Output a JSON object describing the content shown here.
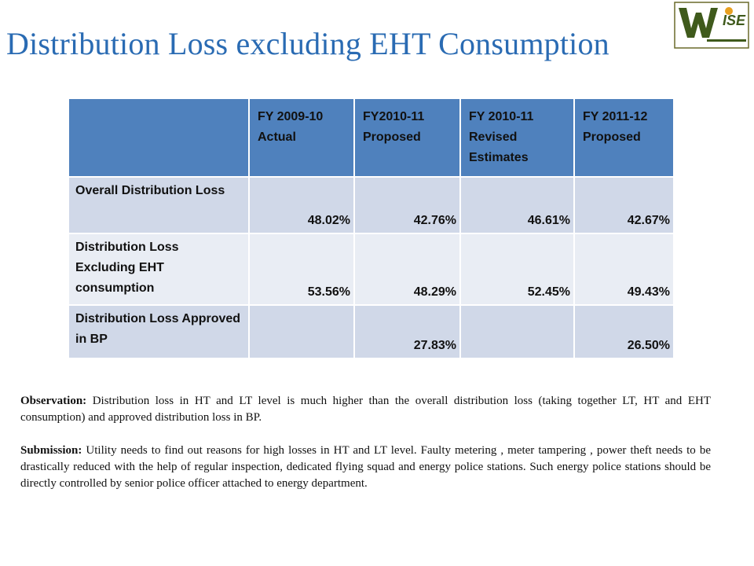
{
  "slide": {
    "title": "Distribution Loss excluding EHT Consumption",
    "logo_text": "ISE"
  },
  "table": {
    "headers": [
      "",
      "FY 2009-10 Actual",
      "FY2010-11 Proposed",
      "FY 2010-11 Revised Estimates",
      "FY 2011-12 Proposed"
    ],
    "rows": [
      {
        "label": "Overall Distribution Loss",
        "values": [
          "48.02%",
          "42.76%",
          "46.61%",
          "42.67%"
        ]
      },
      {
        "label": "Distribution Loss Excluding EHT consumption",
        "values": [
          "53.56%",
          "48.29%",
          "52.45%",
          "49.43%"
        ]
      },
      {
        "label": "Distribution Loss Approved in BP",
        "values": [
          "",
          "27.83%",
          "",
          "26.50%"
        ]
      }
    ]
  },
  "observation": {
    "label": "Observation:",
    "text": " Distribution loss in HT and LT level is much higher than the overall distribution loss (taking together LT, HT and EHT consumption) and approved distribution loss in  BP."
  },
  "submission": {
    "label": "Submission:",
    "text": " Utility needs to find out reasons for high losses in HT and LT level. Faulty metering , meter tampering , power theft needs to be drastically reduced with the help of regular inspection, dedicated flying squad and energy police stations.  Such energy police stations should be directly controlled by senior police officer attached to energy department."
  },
  "colors": {
    "title": "#2a6bb3",
    "header_fill": "#4f81bd",
    "row_fill_dark": "#d0d8e8",
    "row_fill_light": "#e9edf4"
  }
}
